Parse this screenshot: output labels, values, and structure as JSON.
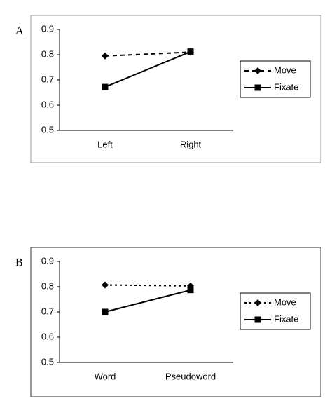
{
  "chart_data": [
    {
      "type": "line",
      "label": "A",
      "categories": [
        "Left",
        "Right"
      ],
      "series": [
        {
          "name": "Move",
          "color": "#000000",
          "dash": "dashed",
          "marker": "diamond",
          "values": [
            0.795,
            0.81
          ]
        },
        {
          "name": "Fixate",
          "color": "#000000",
          "dash": "solid",
          "marker": "square",
          "values": [
            0.672,
            0.812
          ]
        }
      ],
      "ylim": [
        0.5,
        0.9
      ],
      "yticks": [
        0.5,
        0.6,
        0.7,
        0.8,
        0.9
      ],
      "legend": "right",
      "grid": false
    },
    {
      "type": "line",
      "label": "B",
      "categories": [
        "Word",
        "Pseudoword"
      ],
      "series": [
        {
          "name": "Move",
          "color": "#000000",
          "dash": "dotted",
          "marker": "diamond",
          "values": [
            0.807,
            0.803
          ]
        },
        {
          "name": "Fixate",
          "color": "#000000",
          "dash": "solid",
          "marker": "square",
          "values": [
            0.7,
            0.787
          ]
        }
      ],
      "ylim": [
        0.5,
        0.9
      ],
      "yticks": [
        0.5,
        0.6,
        0.7,
        0.8,
        0.9
      ],
      "legend": "right",
      "grid": false
    }
  ]
}
